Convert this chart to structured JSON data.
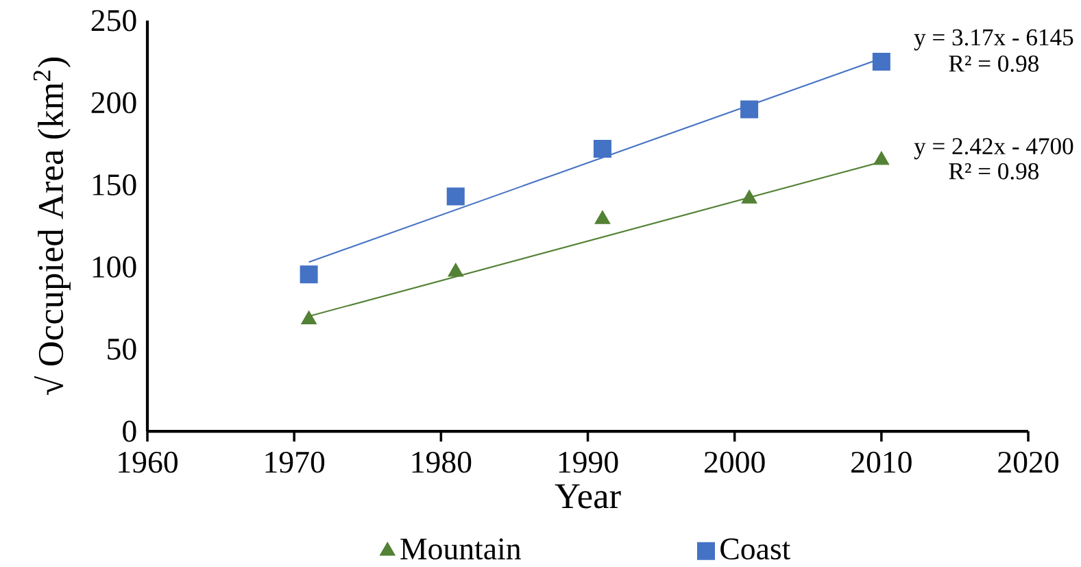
{
  "chart_data": {
    "type": "scatter",
    "xlabel": "Year",
    "ylabel": "√ Occupied Area (km$^{2}$)",
    "xlim": [
      1960,
      2020
    ],
    "xticks": [
      1960,
      1970,
      1980,
      1990,
      2000,
      2010,
      2020
    ],
    "ylim": [
      0,
      250
    ],
    "yticks": [
      0,
      50,
      100,
      150,
      200,
      250
    ],
    "legend": "bottom",
    "grid": false,
    "series": [
      {
        "name": "Mountain",
        "color": "#538135",
        "marker": "triangle",
        "x": [
          1971,
          1981,
          1991,
          2001,
          2010
        ],
        "values": [
          68,
          97,
          129,
          141.5,
          165
        ]
      },
      {
        "name": "Coast",
        "color": "#4472c4",
        "marker": "square",
        "x": [
          1971,
          1981,
          1991,
          2001,
          2010
        ],
        "values": [
          95.5,
          143,
          172,
          196,
          225
        ]
      },
      {
        "type": "line",
        "color": "#4472c4",
        "marker": "none",
        "x": [
          1971,
          2010
        ],
        "values": [
          103,
          227
        ]
      },
      {
        "type": "line",
        "color": "#538135",
        "marker": "none",
        "x": [
          1971,
          2010
        ],
        "values": [
          70,
          164
        ]
      }
    ],
    "annotations": [
      "y = 3.17x - 6145",
      "R² = 0.98",
      "y = 2.42x - 4700",
      "R² = 0.98"
    ]
  }
}
